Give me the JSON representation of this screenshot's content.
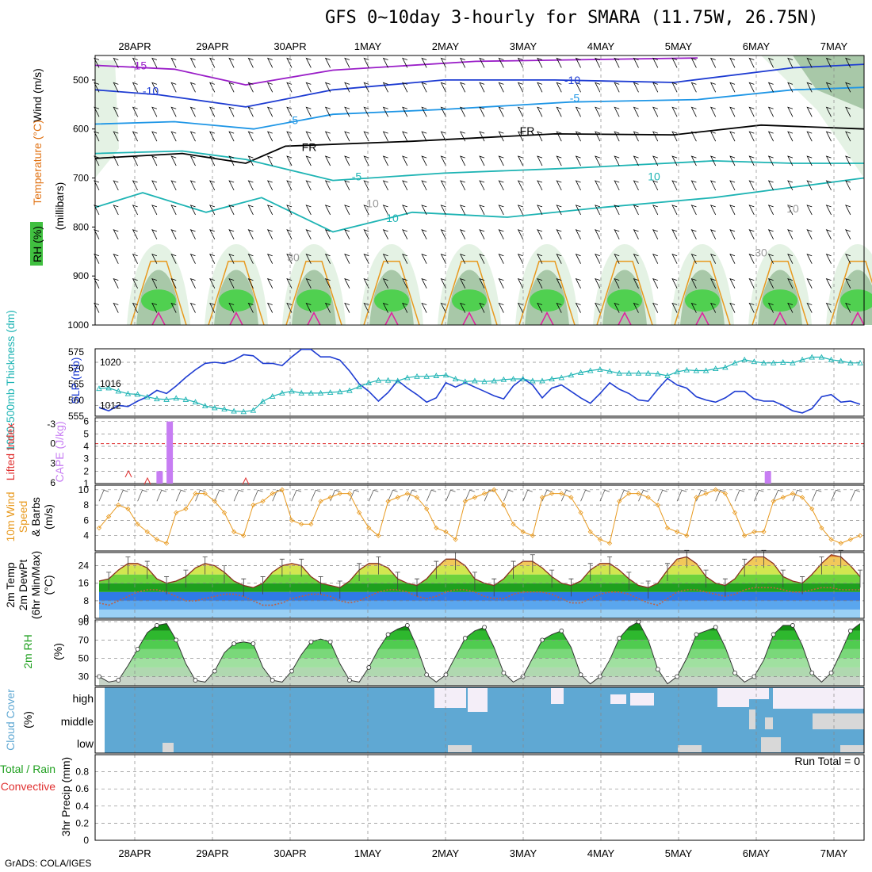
{
  "title": "GFS 0~10day 3-hourly for SMARA (11.75W, 26.75N)",
  "footer": "GrADS: COLA/IGES",
  "colors": {
    "purple": "#9a1ec8",
    "blue": "#1e3cd2",
    "lightblue": "#1e96e6",
    "teal": "#1eb4b4",
    "green": "#20c020",
    "orange": "#e89a20",
    "cape": "#c77df3",
    "cloud": "#5fa8d3",
    "red": "#e03030"
  },
  "dates": [
    "28APR",
    "29APR",
    "30APR",
    "1MAY",
    "2MAY",
    "3MAY",
    "4MAY",
    "5MAY",
    "6MAY",
    "7MAY"
  ],
  "chart_data": [
    {
      "type": "heatmap",
      "panel": "upper-air",
      "ylabel": [
        "Wind (m/s)",
        "Temperature (°C)",
        "RH (%)",
        "(millibars)"
      ],
      "yticks": [
        "500",
        "600",
        "700",
        "800",
        "900",
        "1000"
      ],
      "ylim": [
        1000,
        450
      ],
      "contour_labels": [
        "-15",
        "-10",
        "-10",
        "-5",
        "-5",
        "FR",
        "FR",
        "-5",
        "10",
        "10",
        "10",
        "10",
        "30",
        "30"
      ]
    },
    {
      "type": "line",
      "panel": "slp-thickness",
      "ylabel_left": "1000-500mb Thickness (dm)",
      "ylabel_right": "SLP (mb)",
      "yticks_left": [
        "555",
        "560",
        "565",
        "570",
        "575"
      ],
      "yticks_right": [
        "1012",
        "1016",
        "1020"
      ],
      "series": [
        {
          "name": "SLP",
          "color": "#1e3cd2",
          "values": [
            1011.6,
            1011,
            1012,
            1011.8,
            1012.8,
            1013.6,
            1014.8,
            1014.2,
            1015.6,
            1017.2,
            1018.6,
            1019.8,
            1020,
            1019.8,
            1020.4,
            1021.4,
            1021.2,
            1019.8,
            1019.8,
            1019.4,
            1021,
            1022.4,
            1022.4,
            1021,
            1021,
            1020.4,
            1018.4,
            1016,
            1014.6,
            1012.8,
            1014.4,
            1016.6,
            1015.2,
            1014,
            1012.6,
            1013.4,
            1016.2,
            1015.4,
            1016.2,
            1015.4,
            1014.6,
            1013.8,
            1013.2,
            1015.6,
            1017,
            1015.8,
            1013.4,
            1015.2,
            1015.8,
            1014.6,
            1013.4,
            1012.4,
            1014.2,
            1016.2,
            1015,
            1014.2,
            1013,
            1012.8,
            1015,
            1017,
            1015.8,
            1015.2,
            1013.6,
            1013,
            1012.6,
            1013.4,
            1014.6,
            1014.6,
            1013.2,
            1012.8,
            1012.8,
            1012,
            1011,
            1010.6,
            1011.4,
            1013.6,
            1014,
            1012.6,
            1012.8,
            1012.2
          ]
        },
        {
          "name": "Thickness",
          "color": "#1eb4b4",
          "values": [
            563.6,
            563.8,
            562.8,
            562,
            561.8,
            561,
            560.4,
            560.2,
            560.6,
            560.2,
            559.4,
            558.2,
            557.6,
            557.2,
            556.6,
            556.4,
            556.8,
            559.6,
            561.2,
            562.2,
            562.8,
            562.2,
            562.2,
            562.2,
            562.4,
            562.6,
            563,
            564.2,
            565.4,
            566.2,
            566.2,
            566,
            567,
            567.4,
            567.4,
            567.6,
            567.8,
            566.6,
            565.8,
            566,
            565.8,
            566,
            566.4,
            566.6,
            566.6,
            566,
            566,
            566.6,
            567,
            567.8,
            568.6,
            569.2,
            569.6,
            569,
            568.4,
            568.4,
            568.4,
            568.4,
            568.2,
            567.6,
            568.8,
            569.4,
            569.2,
            569.2,
            569.8,
            570.2,
            571.6,
            572.6,
            572,
            571.6,
            571.6,
            571.8,
            571.6,
            572.6,
            573.4,
            573.4,
            572.6,
            572.2,
            571.6,
            571.6
          ]
        }
      ]
    },
    {
      "type": "bar",
      "panel": "cape-li",
      "ylabel_left": "Lifted Index",
      "ylabel_right": "CAPE (J/kg)",
      "yticks_left": [
        "-3",
        "0",
        "3",
        "6"
      ],
      "yticks_right": [
        "6",
        "5",
        "4",
        "3",
        "2",
        "1"
      ],
      "cape_bars": [
        {
          "day": 0.32,
          "value": 2
        },
        {
          "day": 0.45,
          "value": 6
        },
        {
          "day": 8.15,
          "value": 2
        }
      ]
    },
    {
      "type": "line",
      "panel": "wind10m",
      "ylabel": [
        "10m Wind",
        "Speed",
        "& Barbs",
        "(m/s)"
      ],
      "yticks": [
        "4",
        "6",
        "8",
        "10"
      ],
      "ylim": [
        2,
        10.5
      ],
      "series": [
        {
          "name": "10m Wind Speed",
          "color": "#e89a20",
          "values": [
            5,
            6.5,
            8,
            7.5,
            5.5,
            4.5,
            3.5,
            3,
            7,
            7.5,
            9.5,
            9.5,
            8.5,
            7,
            4.5,
            4,
            8,
            8.5,
            9.5,
            10,
            6,
            5.5,
            5.5,
            8.5,
            9,
            9.5,
            9.5,
            7,
            5,
            4,
            8.5,
            9,
            9.5,
            9,
            7.5,
            5,
            4.5,
            3.5,
            8.5,
            9,
            9.5,
            10,
            8,
            5.5,
            4.5,
            4,
            9,
            9.5,
            9.5,
            9,
            7,
            4.5,
            3.5,
            3,
            8.5,
            9.5,
            9.5,
            9,
            8,
            5,
            4.5,
            4,
            9,
            9.5,
            10,
            9.5,
            7,
            4,
            4.5,
            4.5,
            8.5,
            9,
            9.5,
            9,
            7.5,
            5,
            3.5,
            3,
            3.5,
            4
          ]
        }
      ]
    },
    {
      "type": "area",
      "panel": "temp2m",
      "ylabel": [
        "2m Temp",
        "2m DewPt",
        "(6hr Min/Max)",
        "(°C)"
      ],
      "yticks": [
        "0",
        "8",
        "16",
        "24"
      ],
      "ylim": [
        0,
        30
      ],
      "series": [
        {
          "name": "2m Temp",
          "values": [
            17,
            18,
            22,
            25,
            25,
            23,
            18,
            16,
            17,
            19,
            23,
            25,
            24,
            21,
            17,
            15,
            14,
            16,
            21,
            24,
            25,
            24,
            19,
            16,
            15,
            14,
            17,
            22,
            25,
            25,
            23,
            18,
            16,
            15,
            18,
            23,
            27,
            27,
            24,
            18,
            16,
            15,
            18,
            23,
            26,
            26,
            23,
            19,
            16,
            15,
            17,
            22,
            25,
            25,
            22,
            18,
            15,
            14,
            16,
            22,
            27,
            28,
            25,
            19,
            16,
            15,
            18,
            24,
            28,
            28,
            25,
            19,
            17,
            16,
            20,
            25,
            29,
            28,
            24,
            19
          ]
        },
        {
          "name": "2m DewPt",
          "values": [
            7,
            6,
            8,
            10,
            12,
            13,
            13,
            12,
            10,
            8,
            8,
            9,
            10,
            11,
            11,
            10,
            8,
            6,
            6,
            7,
            9,
            10,
            11,
            11,
            10,
            8,
            7,
            8,
            10,
            12,
            13,
            13,
            12,
            10,
            9,
            10,
            12,
            13,
            13,
            12,
            10,
            9,
            9,
            11,
            12,
            12,
            12,
            11,
            9,
            7,
            7,
            9,
            11,
            12,
            12,
            11,
            9,
            7,
            6,
            9,
            12,
            13,
            13,
            12,
            11,
            10,
            11,
            13,
            14,
            14,
            14,
            13,
            12,
            12,
            13,
            14,
            14,
            13,
            13,
            13
          ]
        }
      ]
    },
    {
      "type": "area",
      "panel": "rh2m",
      "ylabel": [
        "2m RH",
        "(%)"
      ],
      "yticks": [
        "30",
        "50",
        "70",
        "90"
      ],
      "ylim": [
        20,
        92
      ],
      "series": [
        {
          "name": "2m RH",
          "values": [
            30,
            24,
            26,
            42,
            60,
            78,
            86,
            88,
            70,
            44,
            26,
            24,
            36,
            56,
            66,
            68,
            66,
            40,
            26,
            24,
            36,
            54,
            68,
            71,
            68,
            44,
            26,
            24,
            40,
            60,
            76,
            82,
            86,
            62,
            32,
            24,
            32,
            52,
            72,
            80,
            84,
            62,
            34,
            24,
            30,
            50,
            70,
            76,
            80,
            62,
            32,
            22,
            30,
            48,
            72,
            84,
            90,
            70,
            38,
            22,
            30,
            50,
            76,
            80,
            84,
            62,
            34,
            24,
            30,
            48,
            76,
            86,
            86,
            64,
            34,
            24,
            34,
            56,
            80,
            88
          ]
        }
      ]
    },
    {
      "type": "heatmap",
      "panel": "cloud",
      "ylabel": [
        "Cloud Cover",
        "(%)"
      ],
      "yticks": [
        "high",
        "middle",
        "low"
      ]
    },
    {
      "type": "bar",
      "panel": "precip",
      "ylabel": [
        "Total / Rain",
        "Convective",
        "3hr Precip (mm)"
      ],
      "yticks": [
        "0",
        "0.2",
        "0.4",
        "0.6",
        "0.8"
      ],
      "ylim": [
        0,
        1
      ],
      "run_total": "Run Total = 0",
      "values": []
    }
  ]
}
